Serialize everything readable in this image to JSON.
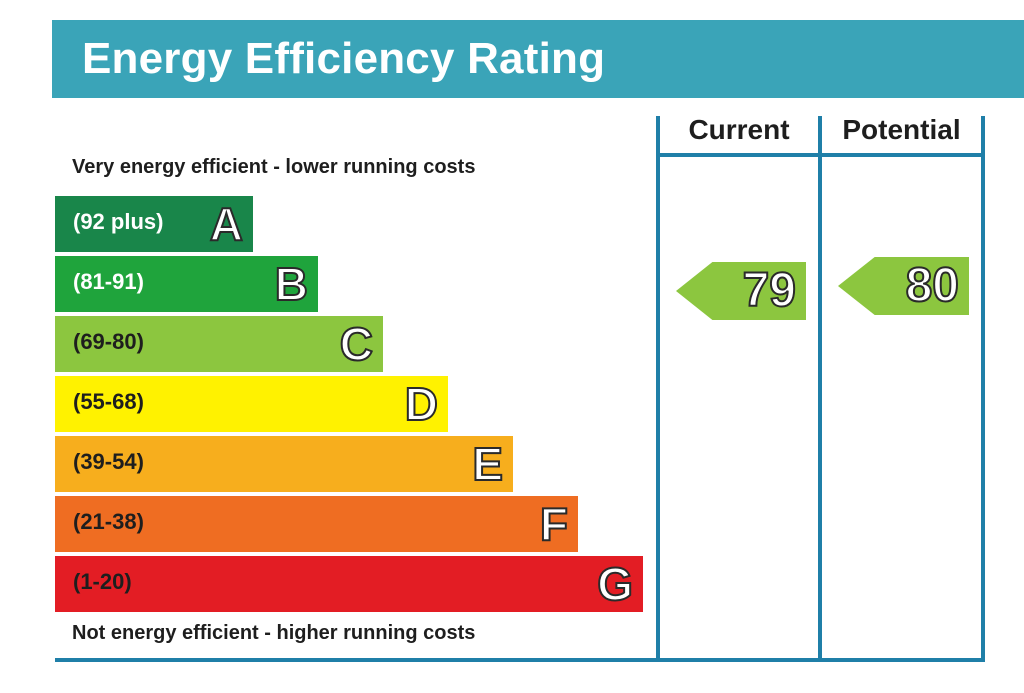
{
  "chart_data": {
    "type": "bar",
    "title": "Energy Efficiency Rating",
    "top_note": "Very energy efficient - lower running costs",
    "bottom_note": "Not energy efficient - higher running costs",
    "bands": [
      {
        "letter": "A",
        "range": "(92 plus)",
        "color": "#19864a",
        "text_color": "#ffffff"
      },
      {
        "letter": "B",
        "range": "(81-91)",
        "color": "#1fa43c",
        "text_color": "#ffffff"
      },
      {
        "letter": "C",
        "range": "(69-80)",
        "color": "#8cc63f",
        "text_color": "#1e1e1e"
      },
      {
        "letter": "D",
        "range": "(55-68)",
        "color": "#fff200",
        "text_color": "#1e1e1e"
      },
      {
        "letter": "E",
        "range": "(39-54)",
        "color": "#f7ae1d",
        "text_color": "#1e1e1e"
      },
      {
        "letter": "F",
        "range": "(21-38)",
        "color": "#ef6d22",
        "text_color": "#1e1e1e"
      },
      {
        "letter": "G",
        "range": "(1-20)",
        "color": "#e31d24",
        "text_color": "#1e1e1e"
      }
    ],
    "columns": [
      "Current",
      "Potential"
    ],
    "ratings": [
      {
        "column": "Current",
        "value": 79,
        "band": "C",
        "color": "#8cc63f"
      },
      {
        "column": "Potential",
        "value": 80,
        "band": "C",
        "color": "#8cc63f"
      }
    ]
  }
}
